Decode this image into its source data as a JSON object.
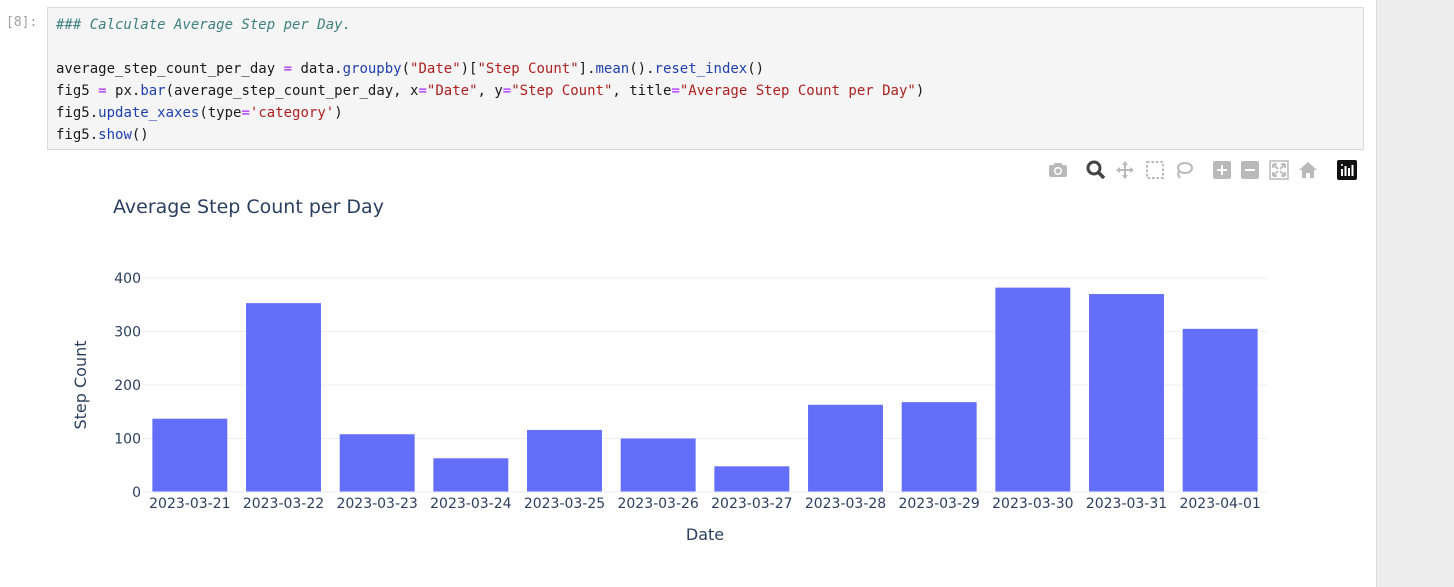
{
  "cell": {
    "prompt": "[8]:",
    "lines": [
      [
        {
          "t": "### Calculate Average Step per Day.",
          "c": "t-comment"
        }
      ],
      [
        {
          "t": "",
          "c": ""
        }
      ],
      [
        {
          "t": "average_step_count_per_day ",
          "c": ""
        },
        {
          "t": "=",
          "c": "t-kw"
        },
        {
          "t": " data.",
          "c": ""
        },
        {
          "t": "groupby",
          "c": "t-fn"
        },
        {
          "t": "(",
          "c": ""
        },
        {
          "t": "\"Date\"",
          "c": "t-str"
        },
        {
          "t": ")[",
          "c": ""
        },
        {
          "t": "\"Step Count\"",
          "c": "t-str"
        },
        {
          "t": "].",
          "c": ""
        },
        {
          "t": "mean",
          "c": "t-fn"
        },
        {
          "t": "().",
          "c": ""
        },
        {
          "t": "reset_index",
          "c": "t-fn"
        },
        {
          "t": "()",
          "c": ""
        }
      ],
      [
        {
          "t": "fig5 ",
          "c": ""
        },
        {
          "t": "=",
          "c": "t-kw"
        },
        {
          "t": " px.",
          "c": ""
        },
        {
          "t": "bar",
          "c": "t-fn"
        },
        {
          "t": "(average_step_count_per_day, x",
          "c": ""
        },
        {
          "t": "=",
          "c": "t-kw"
        },
        {
          "t": "\"Date\"",
          "c": "t-str"
        },
        {
          "t": ", y",
          "c": ""
        },
        {
          "t": "=",
          "c": "t-kw"
        },
        {
          "t": "\"Step Count\"",
          "c": "t-str"
        },
        {
          "t": ", title",
          "c": ""
        },
        {
          "t": "=",
          "c": "t-kw"
        },
        {
          "t": "\"Average Step Count per Day\"",
          "c": "t-str"
        },
        {
          "t": ")",
          "c": ""
        }
      ],
      [
        {
          "t": "fig5.",
          "c": ""
        },
        {
          "t": "update_xaxes",
          "c": "t-fn"
        },
        {
          "t": "(type",
          "c": ""
        },
        {
          "t": "=",
          "c": "t-kw"
        },
        {
          "t": "'category'",
          "c": "t-str"
        },
        {
          "t": ")",
          "c": ""
        }
      ],
      [
        {
          "t": "fig5.",
          "c": ""
        },
        {
          "t": "show",
          "c": "t-fn"
        },
        {
          "t": "()",
          "c": ""
        }
      ]
    ]
  },
  "modebar": {
    "icons": [
      "camera-icon",
      "zoom-icon",
      "pan-icon",
      "box-select-icon",
      "lasso-icon",
      "zoom-in-icon",
      "zoom-out-icon",
      "autoscale-icon",
      "reset-axes-icon",
      "plotly-logo-icon"
    ]
  },
  "chart_data": {
    "type": "bar",
    "title": "Average Step Count per Day",
    "xlabel": "Date",
    "ylabel": "Step Count",
    "categories": [
      "2023-03-21",
      "2023-03-22",
      "2023-03-23",
      "2023-03-24",
      "2023-03-25",
      "2023-03-26",
      "2023-03-27",
      "2023-03-28",
      "2023-03-29",
      "2023-03-30",
      "2023-03-31",
      "2023-04-01"
    ],
    "values": [
      137,
      353,
      108,
      63,
      116,
      100,
      48,
      163,
      168,
      382,
      370,
      305
    ],
    "ylim": [
      0,
      420
    ],
    "yticks": [
      0,
      100,
      200,
      300,
      400
    ],
    "grid": true,
    "colors": {
      "bar": "#636efa",
      "text": "#2a3f5f",
      "grid": "#ebeef3"
    }
  }
}
